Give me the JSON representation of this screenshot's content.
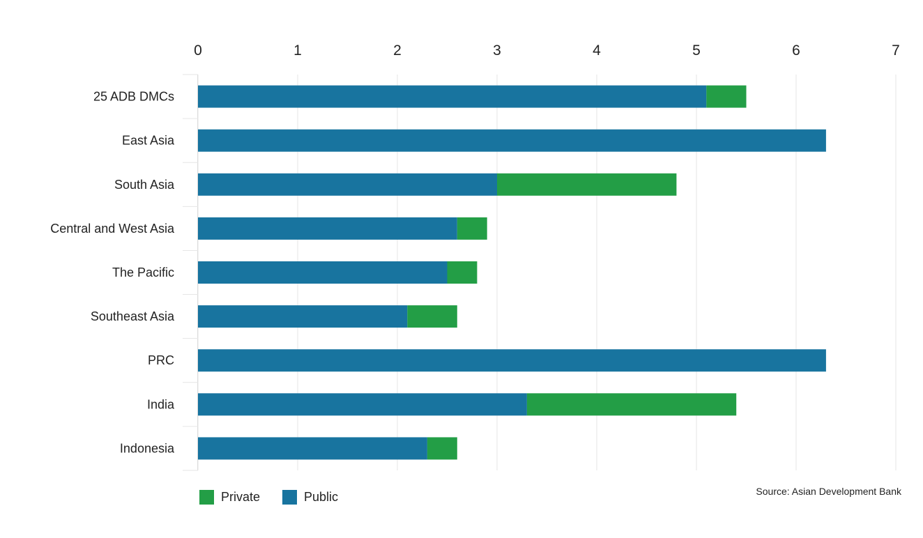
{
  "chart_data": {
    "type": "bar",
    "orientation": "horizontal",
    "stacked": true,
    "categories": [
      "25 ADB DMCs",
      "East Asia",
      "South Asia",
      "Central and West Asia",
      "The Pacific",
      "Southeast Asia",
      "PRC",
      "India",
      "Indonesia"
    ],
    "series": [
      {
        "name": "Public",
        "color": "#18749f",
        "values": [
          5.1,
          6.3,
          3.0,
          2.6,
          2.5,
          2.1,
          6.3,
          3.3,
          2.3
        ]
      },
      {
        "name": "Private",
        "color": "#239e46",
        "values": [
          0.4,
          0.0,
          1.8,
          0.3,
          0.3,
          0.5,
          0.0,
          2.1,
          0.3
        ]
      }
    ],
    "x_ticks": [
      "0",
      "1",
      "2",
      "3",
      "4",
      "5",
      "6",
      "7"
    ],
    "xlim": [
      0,
      7
    ],
    "x_axis_position": "top",
    "grid": true,
    "legend_position": "bottom-left"
  },
  "legend": [
    {
      "label": "Private",
      "color": "#239e46"
    },
    {
      "label": "Public",
      "color": "#18749f"
    }
  ],
  "source": "Source: Asian Development Bank"
}
